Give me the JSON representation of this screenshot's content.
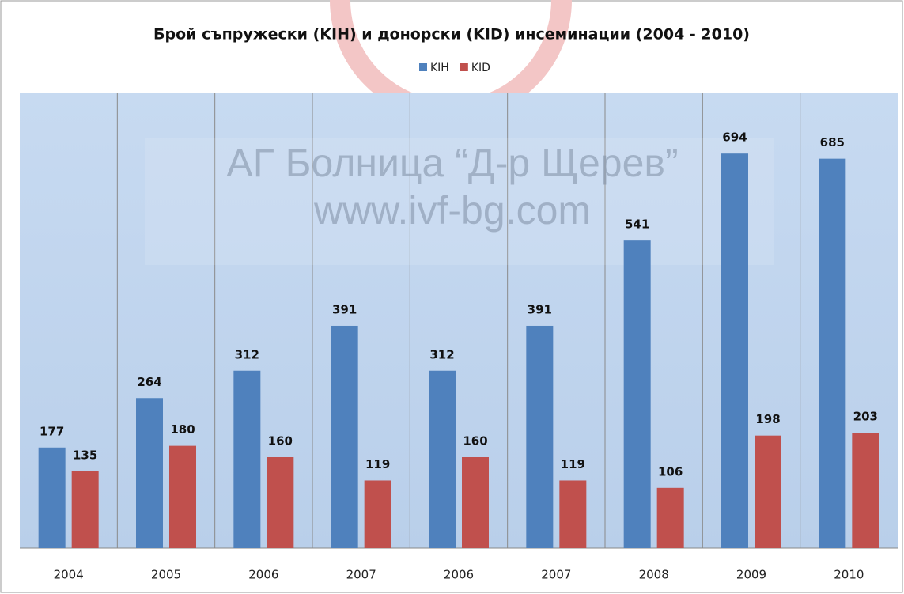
{
  "chart_data": {
    "type": "bar",
    "title": "Брой съпружески (KIH) и донорски (KID) инсеминации (2004 - 2010)",
    "watermark": [
      "АГ Болница “Д-р Щерев”",
      "www.ivf-bg.com"
    ],
    "categories": [
      "2004",
      "2005",
      "2006",
      "2007",
      "2006",
      "2007",
      "2008",
      "2009",
      "2010"
    ],
    "series": [
      {
        "name": "KIH",
        "color": "#4f81bd",
        "values": [
          177,
          264,
          312,
          391,
          312,
          391,
          541,
          694,
          685
        ]
      },
      {
        "name": "KID",
        "color": "#c0504d",
        "values": [
          135,
          180,
          160,
          119,
          160,
          119,
          106,
          198,
          203
        ]
      }
    ],
    "ylim": [
      0,
      800
    ],
    "legend": "top",
    "data_labels": true
  }
}
